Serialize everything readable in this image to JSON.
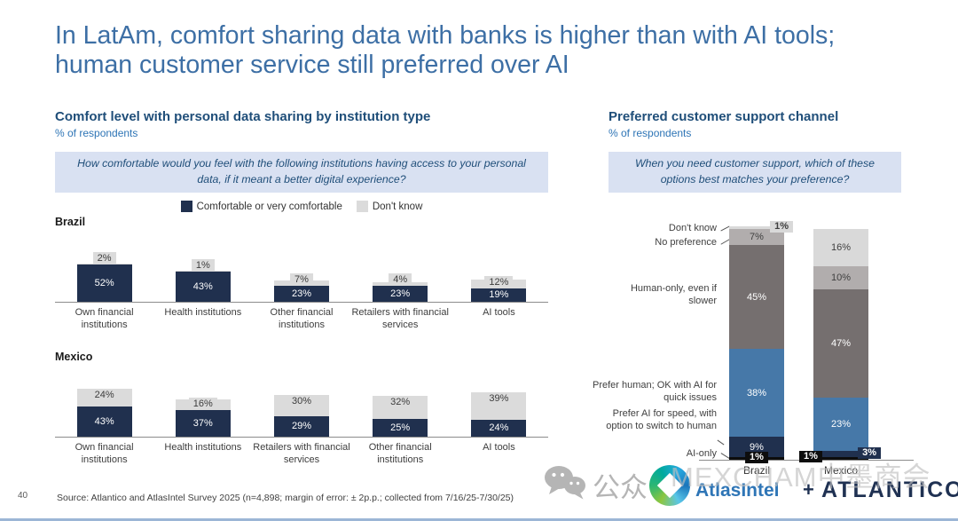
{
  "slide": {
    "title": "In LatAm, comfort sharing data with banks is higher than with AI tools; human customer service still preferred over AI",
    "page_number": "40",
    "source_note": "Source: Atlantico and AtlasIntel Survey 2025 (n=4,898; margin of error: ± 2p.p.; collected from 7/16/25-7/30/25)"
  },
  "left_panel": {
    "title": "Comfort level with personal data sharing by institution type",
    "subtitle": "% of respondents",
    "question": "How comfortable would you feel with the following institutions having access to your personal data, if it meant a better digital experience?",
    "legend": [
      {
        "label": "Comfortable or very comfortable",
        "color": "#20304e"
      },
      {
        "label": "Don't know",
        "color": "#dbdbdb"
      }
    ]
  },
  "right_panel": {
    "title": "Preferred customer support channel",
    "subtitle": "% of respondents",
    "question": "When you need customer support, which of these options best matches your preference?"
  },
  "watermark": {
    "wechat_label": "公众号",
    "overlay_text": "MEXCHAM中墨商会"
  },
  "branding": {
    "atlasintel": "AtlasIntel",
    "plus": "+",
    "atlantico": "ATLANTICO"
  },
  "chart_data": [
    {
      "type": "bar",
      "title": "Comfort level with personal data sharing by institution type — Brazil",
      "group_label": "Brazil",
      "ylabel": "% of respondents",
      "categories": [
        "Own financial institutions",
        "Health institutions",
        "Other financial institutions",
        "Retailers with financial services",
        "AI tools"
      ],
      "series": [
        {
          "name": "Comfortable or very comfortable",
          "color": "#20304e",
          "values": [
            52,
            43,
            23,
            23,
            19
          ]
        },
        {
          "name": "Don't know",
          "color": "#dbdbdb",
          "values": [
            2,
            1,
            7,
            4,
            12
          ]
        }
      ]
    },
    {
      "type": "bar",
      "title": "Comfort level with personal data sharing by institution type — Mexico",
      "group_label": "Mexico",
      "ylabel": "% of respondents",
      "categories": [
        "Own financial institutions",
        "Health institutions",
        "Retailers with financial services",
        "Other financial institutions",
        "AI tools"
      ],
      "series": [
        {
          "name": "Comfortable or very comfortable",
          "color": "#20304e",
          "values": [
            43,
            37,
            29,
            25,
            24
          ]
        },
        {
          "name": "Don't know",
          "color": "#dbdbdb",
          "values": [
            24,
            16,
            30,
            32,
            39
          ]
        }
      ]
    },
    {
      "type": "bar",
      "subtype": "stacked-100",
      "title": "Preferred customer support channel",
      "ylabel": "% of respondents",
      "categories": [
        "Brazil",
        "Mexico"
      ],
      "series": [
        {
          "name": "AI-only",
          "color": "#0d0d0d",
          "values": [
            1,
            1
          ]
        },
        {
          "name": "Prefer AI for speed, with option to switch to human",
          "color": "#20304e",
          "values": [
            9,
            3
          ]
        },
        {
          "name": "Prefer human; OK with AI for quick issues",
          "color": "#4678a8",
          "values": [
            38,
            23
          ]
        },
        {
          "name": "Human-only, even if slower",
          "color": "#756f6f",
          "values": [
            45,
            47
          ]
        },
        {
          "name": "No preference",
          "color": "#b1adad",
          "values": [
            7,
            10
          ]
        },
        {
          "name": "Don't know",
          "color": "#d9d9d9",
          "values": [
            1,
            16
          ]
        }
      ]
    }
  ]
}
